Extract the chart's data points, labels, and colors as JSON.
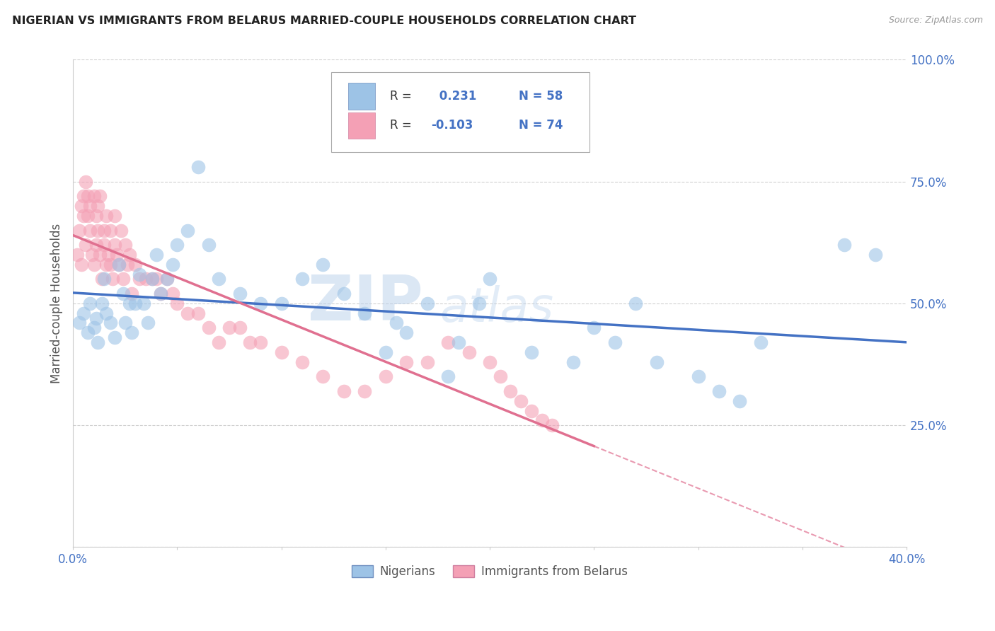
{
  "title": "NIGERIAN VS IMMIGRANTS FROM BELARUS MARRIED-COUPLE HOUSEHOLDS CORRELATION CHART",
  "source": "Source: ZipAtlas.com",
  "ylabel": "Married-couple Households",
  "x_min": 0.0,
  "x_max": 0.4,
  "y_min": 0.0,
  "y_max": 1.0,
  "x_ticks": [
    0.0,
    0.05,
    0.1,
    0.15,
    0.2,
    0.25,
    0.3,
    0.35,
    0.4
  ],
  "x_tick_labels": [
    "0.0%",
    "",
    "",
    "",
    "",
    "",
    "",
    "",
    "40.0%"
  ],
  "y_ticks": [
    0.0,
    0.25,
    0.5,
    0.75,
    1.0
  ],
  "y_tick_labels": [
    "",
    "25.0%",
    "50.0%",
    "75.0%",
    "100.0%"
  ],
  "R_nigerian": 0.231,
  "N_nigerian": 58,
  "R_belarus": -0.103,
  "N_belarus": 74,
  "color_nigerian": "#9dc3e6",
  "color_belarus": "#f4a0b5",
  "color_nigerian_line": "#4472c4",
  "color_belarus_line": "#e07090",
  "watermark_zip": "ZIP",
  "watermark_atlas": "atlas",
  "nigerian_x": [
    0.003,
    0.005,
    0.007,
    0.008,
    0.01,
    0.011,
    0.012,
    0.014,
    0.015,
    0.016,
    0.018,
    0.02,
    0.022,
    0.024,
    0.025,
    0.027,
    0.028,
    0.03,
    0.032,
    0.034,
    0.036,
    0.038,
    0.04,
    0.042,
    0.045,
    0.048,
    0.05,
    0.055,
    0.06,
    0.065,
    0.07,
    0.08,
    0.09,
    0.1,
    0.11,
    0.12,
    0.13,
    0.14,
    0.15,
    0.155,
    0.16,
    0.17,
    0.18,
    0.185,
    0.195,
    0.2,
    0.22,
    0.24,
    0.25,
    0.26,
    0.27,
    0.28,
    0.3,
    0.31,
    0.32,
    0.33,
    0.37,
    0.385
  ],
  "nigerian_y": [
    0.46,
    0.48,
    0.44,
    0.5,
    0.45,
    0.47,
    0.42,
    0.5,
    0.55,
    0.48,
    0.46,
    0.43,
    0.58,
    0.52,
    0.46,
    0.5,
    0.44,
    0.5,
    0.56,
    0.5,
    0.46,
    0.55,
    0.6,
    0.52,
    0.55,
    0.58,
    0.62,
    0.65,
    0.78,
    0.62,
    0.55,
    0.52,
    0.5,
    0.5,
    0.55,
    0.58,
    0.52,
    0.48,
    0.4,
    0.46,
    0.44,
    0.5,
    0.35,
    0.42,
    0.5,
    0.55,
    0.4,
    0.38,
    0.45,
    0.42,
    0.5,
    0.38,
    0.35,
    0.32,
    0.3,
    0.42,
    0.62,
    0.6
  ],
  "belarus_x": [
    0.002,
    0.003,
    0.004,
    0.004,
    0.005,
    0.005,
    0.006,
    0.006,
    0.007,
    0.007,
    0.008,
    0.008,
    0.009,
    0.01,
    0.01,
    0.011,
    0.011,
    0.012,
    0.012,
    0.013,
    0.013,
    0.014,
    0.015,
    0.015,
    0.016,
    0.016,
    0.017,
    0.018,
    0.018,
    0.019,
    0.02,
    0.02,
    0.021,
    0.022,
    0.023,
    0.024,
    0.025,
    0.026,
    0.027,
    0.028,
    0.03,
    0.032,
    0.035,
    0.038,
    0.04,
    0.042,
    0.045,
    0.048,
    0.05,
    0.055,
    0.06,
    0.065,
    0.07,
    0.075,
    0.08,
    0.085,
    0.09,
    0.1,
    0.11,
    0.12,
    0.13,
    0.14,
    0.15,
    0.16,
    0.17,
    0.18,
    0.19,
    0.2,
    0.205,
    0.21,
    0.215,
    0.22,
    0.225,
    0.23
  ],
  "belarus_y": [
    0.6,
    0.65,
    0.58,
    0.7,
    0.68,
    0.72,
    0.62,
    0.75,
    0.68,
    0.72,
    0.65,
    0.7,
    0.6,
    0.58,
    0.72,
    0.68,
    0.62,
    0.7,
    0.65,
    0.6,
    0.72,
    0.55,
    0.62,
    0.65,
    0.58,
    0.68,
    0.6,
    0.58,
    0.65,
    0.55,
    0.62,
    0.68,
    0.6,
    0.58,
    0.65,
    0.55,
    0.62,
    0.58,
    0.6,
    0.52,
    0.58,
    0.55,
    0.55,
    0.55,
    0.55,
    0.52,
    0.55,
    0.52,
    0.5,
    0.48,
    0.48,
    0.45,
    0.42,
    0.45,
    0.45,
    0.42,
    0.42,
    0.4,
    0.38,
    0.35,
    0.32,
    0.32,
    0.35,
    0.38,
    0.38,
    0.42,
    0.4,
    0.38,
    0.35,
    0.32,
    0.3,
    0.28,
    0.26,
    0.25
  ]
}
